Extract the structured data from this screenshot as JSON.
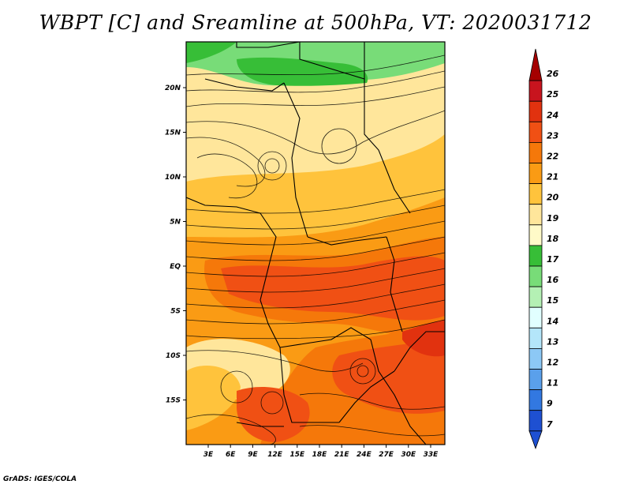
{
  "title": "WBPT [C] and Sreamline at 500hPa, VT: 2020031712",
  "credit": "GrADS: IGES/COLA",
  "map": {
    "lat_labels": [
      "20N",
      "15N",
      "10N",
      "5N",
      "EQ",
      "5S",
      "10S",
      "15S"
    ],
    "lon_labels": [
      "3E",
      "6E",
      "9E",
      "12E",
      "15E",
      "18E",
      "21E",
      "24E",
      "27E",
      "30E",
      "33E"
    ]
  },
  "colorbar": {
    "labels": [
      "26",
      "25",
      "24",
      "23",
      "22",
      "21",
      "20",
      "19",
      "18",
      "17",
      "16",
      "15",
      "14",
      "13",
      "12",
      "11",
      "9",
      "7"
    ],
    "colors": [
      "#a50000",
      "#c8141e",
      "#e1320f",
      "#f05014",
      "#f5780a",
      "#fa9b14",
      "#ffc33c",
      "#ffe69b",
      "#fffac8",
      "#37be37",
      "#78dc78",
      "#b4f0b4",
      "#e1ffff",
      "#b4e6fa",
      "#8cc8f5",
      "#5aa0eb",
      "#3278e1",
      "#1e50d2"
    ]
  }
}
